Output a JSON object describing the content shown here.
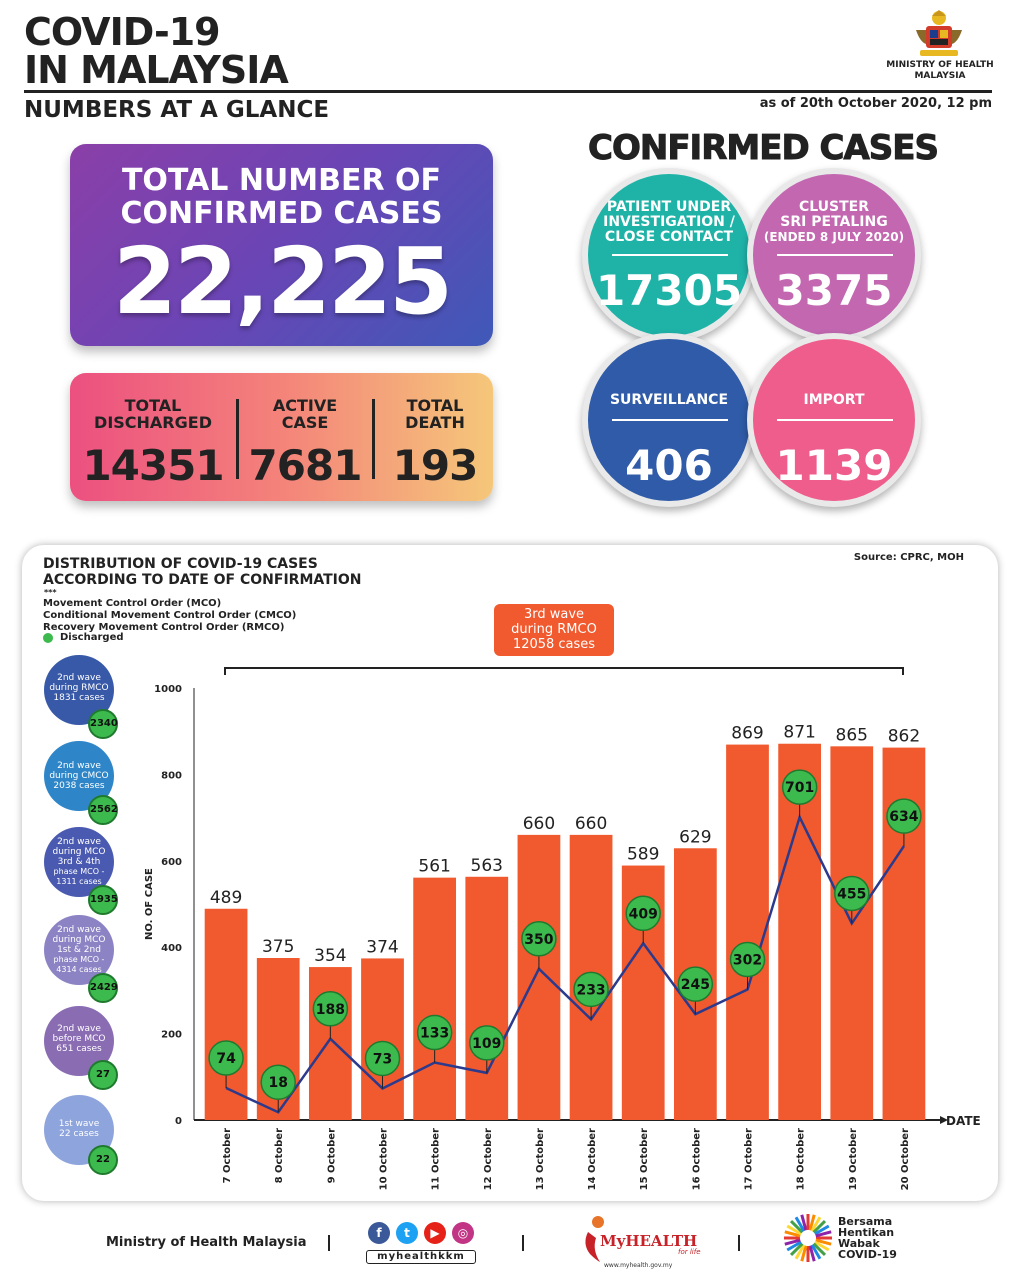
{
  "header": {
    "title_line1": "COVID-19",
    "title_line2": "IN MALAYSIA",
    "subtitle": "NUMBERS AT A GLANCE",
    "as_of": "as of 20th October 2020, 12 pm",
    "ministry_line1": "MINISTRY OF HEALTH",
    "ministry_line2": "MALAYSIA"
  },
  "total": {
    "label_line1": "TOTAL NUMBER OF",
    "label_line2": "CONFIRMED CASES",
    "value": "22,225"
  },
  "stats": [
    {
      "label1": "TOTAL",
      "label2": "DISCHARGED",
      "value": "14351"
    },
    {
      "label1": "ACTIVE",
      "label2": "CASE",
      "value": "7681"
    },
    {
      "label1": "TOTAL",
      "label2": "DEATH",
      "value": "193"
    }
  ],
  "confirmed": {
    "title": "CONFIRMED CASES",
    "circles": [
      {
        "l1": "PATIENT UNDER",
        "l2": "INVESTIGATION /",
        "l3": "CLOSE CONTACT",
        "value": "17305",
        "color": "#1fb3a8"
      },
      {
        "l1": "CLUSTER",
        "l2": "SRI PETALING",
        "l3": "(ENDED 8 JULY 2020)",
        "value": "3375",
        "color": "#c267b0"
      },
      {
        "l1": "SURVEILLANCE",
        "l2": "",
        "l3": "",
        "value": "406",
        "color": "#2f5ba8"
      },
      {
        "l1": "IMPORT",
        "l2": "",
        "l3": "",
        "value": "1139",
        "color": "#ee5d8c"
      }
    ]
  },
  "distribution": {
    "title_line1": "DISTRIBUTION OF COVID-19 CASES",
    "title_line2": "ACCORDING TO DATE OF CONFIRMATION",
    "source": "Source: CPRC, MOH",
    "stars": "***",
    "legend": [
      "Movement Control Order (MCO)",
      "Conditional Movement Control Order (CMCO)",
      "Recovery Movement Control Order (RMCO)"
    ],
    "discharged_label": "Discharged",
    "wave_label_line1": "3rd wave",
    "wave_label_line2": "during RMCO",
    "wave_label_line3": "12058 cases",
    "waves": [
      {
        "l1": "2nd wave",
        "l2": "during RMCO",
        "l3": "1831 cases",
        "l4": "",
        "discharged": "2340",
        "color": "#3858a8"
      },
      {
        "l1": "2nd wave",
        "l2": "during CMCO",
        "l3": "2038 cases",
        "l4": "",
        "discharged": "2562",
        "color": "#2e86c9"
      },
      {
        "l1": "2nd wave",
        "l2": "during MCO",
        "l3": "3rd & 4th",
        "l4": "phase MCO - 1311 cases",
        "discharged": "1935",
        "color": "#4a5ab0"
      },
      {
        "l1": "2nd wave",
        "l2": "during MCO",
        "l3": "1st & 2nd",
        "l4": "phase MCO - 4314 cases",
        "discharged": "2429",
        "color": "#8c83c4"
      },
      {
        "l1": "2nd wave",
        "l2": "before MCO",
        "l3": "651 cases",
        "l4": "",
        "discharged": "27",
        "color": "#8a6cb3"
      },
      {
        "l1": "1st wave",
        "l2": "22 cases",
        "l3": "",
        "l4": "",
        "discharged": "22",
        "color": "#8ea4dc"
      }
    ]
  },
  "chart_data": {
    "type": "bar",
    "categories": [
      "7 October",
      "8 October",
      "9 October",
      "10 October",
      "11 October",
      "12 October",
      "13 October",
      "14 October",
      "15 October",
      "16 October",
      "17 October",
      "18 October",
      "19 October",
      "20 October"
    ],
    "series": [
      {
        "values": [
          489,
          375,
          354,
          374,
          561,
          563,
          660,
          660,
          589,
          629,
          869,
          871,
          865,
          862
        ],
        "color": "#f1592e"
      },
      {
        "name": "Discharged",
        "type": "line",
        "values": [
          74,
          18,
          188,
          73,
          133,
          109,
          350,
          233,
          409,
          245,
          302,
          701,
          455,
          634
        ],
        "color": "#2b3a8c",
        "marker_color": "#3dba4e"
      }
    ],
    "ylabel": "NO. OF CASE",
    "xlabel": "DATE",
    "ylim": [
      0,
      1000
    ],
    "yticks": [
      0,
      200,
      400,
      600,
      800,
      1000
    ]
  },
  "footer": {
    "ministry": "Ministry of Health Malaysia",
    "social_handle": "myhealthkkm",
    "myhealth": "MyHEALTH",
    "for_life": "for life",
    "myhealth_url": "www.myhealth.gov.my",
    "campaign_line1": "Bersama",
    "campaign_line2": "Hentikan",
    "campaign_line3": "Wabak",
    "campaign_line4": "COVID-19"
  }
}
